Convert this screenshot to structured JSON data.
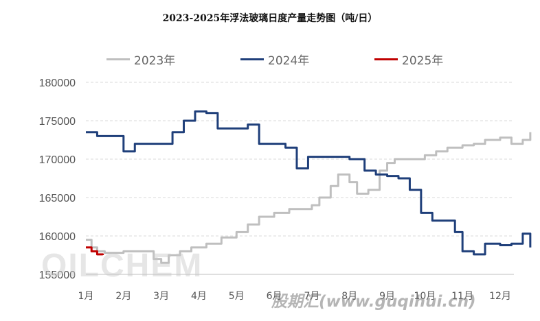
{
  "title": "2023-2025年浮法玻璃日度产量走势图（吨/日）",
  "watermark_text": "OILCHEM",
  "watermark_site": "股期汇(www.guqihui.cn)",
  "chart_data": {
    "type": "line",
    "title": "2023-2025年浮法玻璃日度产量走势图（吨/日）",
    "categories": [
      "1月",
      "2月",
      "3月",
      "4月",
      "5月",
      "6月",
      "7月",
      "8月",
      "9月",
      "10月",
      "11月",
      "12月"
    ],
    "ylim": [
      155000,
      180000
    ],
    "yticks": [
      "180000",
      "175000",
      "170000",
      "165000",
      "160000",
      "155000"
    ],
    "grid": "horizontal dashed",
    "legend_position": "top",
    "series": [
      {
        "name": "2023年",
        "color": "#bfbfbf",
        "x": [
          1,
          1.15,
          1.3,
          1.5,
          1.7,
          2,
          2.5,
          2.8,
          3,
          3.2,
          3.5,
          3.8,
          4.2,
          4.6,
          5,
          5.3,
          5.6,
          6,
          6.4,
          6.8,
          7,
          7.2,
          7.5,
          7.7,
          8,
          8.2,
          8.5,
          8.8,
          9,
          9.2,
          9.5,
          9.8,
          10,
          10.3,
          10.6,
          11,
          11.3,
          11.6,
          12,
          12.3,
          12.6,
          12.8
        ],
        "values": [
          159500,
          158500,
          158000,
          157800,
          157800,
          158000,
          158000,
          157000,
          156500,
          157500,
          158000,
          158500,
          159000,
          159800,
          160500,
          161500,
          162500,
          163000,
          163500,
          163500,
          164000,
          165000,
          166500,
          168000,
          167000,
          165500,
          166000,
          168500,
          169500,
          170000,
          170000,
          170000,
          170500,
          171000,
          171500,
          171800,
          172000,
          172500,
          172800,
          172000,
          172500,
          173500
        ],
        "values_unit": "吨/日"
      },
      {
        "name": "2024年",
        "color": "#1f3f7a",
        "x": [
          1,
          1.3,
          1.6,
          2,
          2.3,
          2.6,
          3,
          3.3,
          3.6,
          3.9,
          4.2,
          4.5,
          4.9,
          5.3,
          5.6,
          6,
          6.3,
          6.6,
          6.9,
          7.2,
          7.6,
          8,
          8.4,
          8.7,
          9,
          9.3,
          9.6,
          9.9,
          10.2,
          10.5,
          10.8,
          11,
          11.3,
          11.6,
          12,
          12.3,
          12.6,
          12.8
        ],
        "values": [
          173500,
          173000,
          173000,
          171000,
          172000,
          172000,
          172000,
          173500,
          175000,
          176200,
          176000,
          174000,
          174000,
          174500,
          172000,
          172000,
          171500,
          168800,
          170300,
          170300,
          170300,
          170000,
          168500,
          168000,
          167800,
          167500,
          166000,
          163000,
          162000,
          162000,
          160500,
          158000,
          157600,
          159000,
          158800,
          159000,
          160300,
          158500
        ],
        "values_unit": "吨/日"
      },
      {
        "name": "2025年",
        "color": "#c00000",
        "x": [
          1,
          1.15,
          1.3,
          1.45
        ],
        "values": [
          158500,
          158000,
          157600,
          157500
        ],
        "values_unit": "吨/日"
      }
    ]
  }
}
